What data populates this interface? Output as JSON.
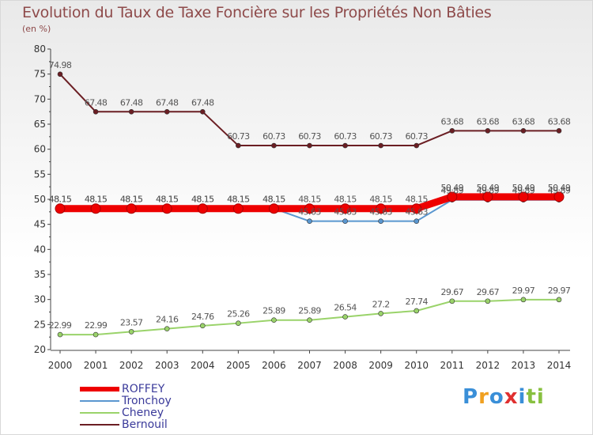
{
  "chart_data": {
    "type": "line",
    "title": "Evolution du Taux de Taxe Foncière sur les Propriétés Non Bâties",
    "subtitle": "(en %)",
    "xlabel": "",
    "ylabel": "(en %)",
    "x": [
      "2000",
      "2001",
      "2002",
      "2003",
      "2004",
      "2005",
      "2006",
      "2007",
      "2008",
      "2009",
      "2010",
      "2011",
      "2012",
      "2013",
      "2014"
    ],
    "ylim": [
      20,
      80
    ],
    "yticks": [
      20,
      25,
      30,
      35,
      40,
      45,
      50,
      55,
      60,
      65,
      70,
      75,
      80
    ],
    "ytick_labels": [
      "20",
      "25",
      "30",
      "35",
      "40",
      "45",
      "50",
      "55",
      "60",
      "65",
      "70",
      "75",
      "80"
    ],
    "grid": false,
    "legend_position": "bottom-left",
    "series": [
      {
        "name": "Bernouil",
        "color": "#6b1e23",
        "values": [
          74.98,
          67.48,
          67.48,
          67.48,
          67.48,
          60.73,
          60.73,
          60.73,
          60.73,
          60.73,
          60.73,
          63.68,
          63.68,
          63.68,
          63.68
        ],
        "labels": [
          "74.98",
          "67.48",
          "67.48",
          "67.48",
          "67.48",
          "60.73",
          "60.73",
          "60.73",
          "60.73",
          "60.73",
          "60.73",
          "63.68",
          "63.68",
          "63.68",
          "63.68"
        ]
      },
      {
        "name": "Cheney",
        "color": "#9ad36a",
        "values": [
          22.99,
          22.99,
          23.57,
          24.16,
          24.76,
          25.26,
          25.89,
          25.89,
          26.54,
          27.2,
          27.74,
          29.67,
          29.67,
          29.97,
          29.97
        ],
        "labels": [
          "22.99",
          "22.99",
          "23.57",
          "24.16",
          "24.76",
          "25.26",
          "25.89",
          "25.89",
          "26.54",
          "27.2",
          "27.74",
          "29.67",
          "29.67",
          "29.97",
          "29.97"
        ]
      },
      {
        "name": "Tronchoy",
        "color": "#5a97d0",
        "values": [
          48.15,
          48.15,
          48.15,
          48.15,
          48.15,
          48.15,
          48.15,
          45.63,
          45.63,
          45.63,
          45.63,
          49.89,
          49.89,
          49.89,
          49.89
        ],
        "labels": [
          "48.15",
          "48.15",
          "48.15",
          "48.15",
          "48.15",
          "48.15",
          "48.15",
          "45.63",
          "45.63",
          "45.63",
          "45.63",
          "49.89",
          "49.89",
          "49.89",
          "49.89"
        ]
      },
      {
        "name": "ROFFEY",
        "color": "#ee0000",
        "values": [
          48.15,
          48.15,
          48.15,
          48.15,
          48.15,
          48.15,
          48.15,
          48.15,
          48.15,
          48.15,
          48.15,
          50.49,
          50.49,
          50.49,
          50.49
        ],
        "labels": [
          "48.15",
          "48.15",
          "48.15",
          "48.15",
          "48.15",
          "48.15",
          "48.15",
          "48.15",
          "48.15",
          "48.15",
          "48.15",
          "50.49",
          "50.49",
          "50.49",
          "50.49"
        ]
      }
    ]
  },
  "legend": {
    "items": [
      {
        "name": "ROFFEY",
        "color": "#ee0000"
      },
      {
        "name": "Tronchoy",
        "color": "#5a97d0"
      },
      {
        "name": "Cheney",
        "color": "#9ad36a"
      },
      {
        "name": "Bernouil",
        "color": "#6b1e23"
      }
    ]
  },
  "logo": {
    "text": "Proxiti",
    "letters": [
      "P",
      "r",
      "o",
      "x",
      "i",
      "t",
      "i"
    ],
    "colors": [
      "#3a8fd8",
      "#f0a020",
      "#3a8fd8",
      "#e03030",
      "#3a8fd8",
      "#88c040",
      "#88c040"
    ]
  }
}
